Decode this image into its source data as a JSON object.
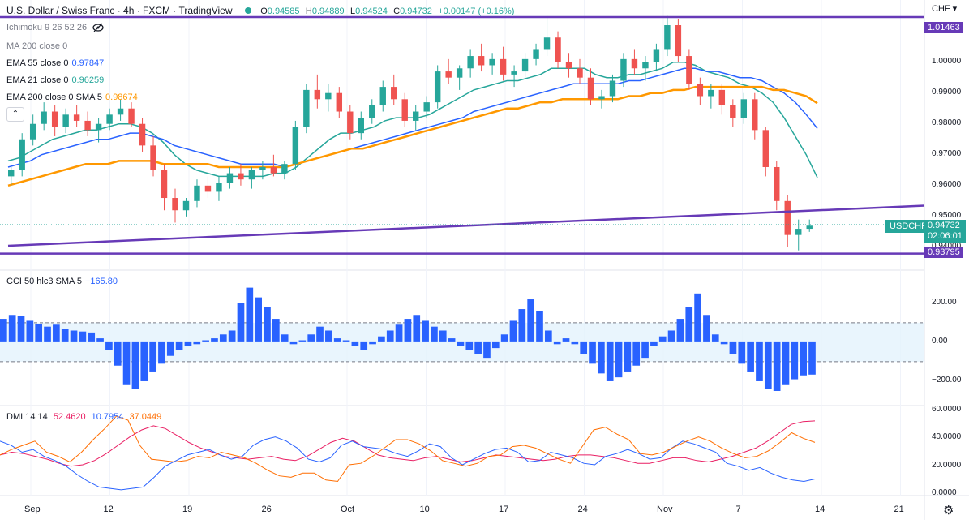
{
  "header": {
    "title": "U.S. Dollar / Swiss Franc · 4h · FXCM · TradingView",
    "open_label": "O",
    "open": "0.94585",
    "high_label": "H",
    "high": "0.94889",
    "low_label": "L",
    "low": "0.94524",
    "close_label": "C",
    "close": "0.94732",
    "change": "+0.00147 (+0.16%)"
  },
  "legend": {
    "ichimoku": "Ichimoku 9 26 52 26",
    "ma200": "MA 200 close 0",
    "ema55": "EMA 55 close 0",
    "ema55_value": "0.97847",
    "ema21": "EMA 21 close 0",
    "ema21_value": "0.96259",
    "ema200": "EMA 200 close 0 SMA 5",
    "ema200_value": "0.98674",
    "collapse_icon": "chevron-up-icon",
    "eye_icon": "eye-off-icon"
  },
  "price_scale": {
    "currency_label": "CHF",
    "ticks": [
      "1.01000",
      "1.00000",
      "0.99000",
      "0.98000",
      "0.97000",
      "0.96000",
      "0.95000",
      "0.94000"
    ],
    "tick_values": [
      1.01,
      1.0,
      0.99,
      0.98,
      0.97,
      0.96,
      0.95,
      0.94
    ],
    "top_line_label": "1.01463",
    "bottom_line_label": "0.93795",
    "symbol_tag": "USDCHF",
    "last_price": "0.94732",
    "countdown": "02:06:01"
  },
  "cci_panel": {
    "label": "CCI 50 hlc3 SMA 5",
    "value": "−165.80",
    "ticks": [
      "200.00",
      "0.00",
      "−200.00"
    ],
    "tick_values": [
      200,
      0,
      -200
    ]
  },
  "dmi_panel": {
    "label": "DMI 14 14",
    "adx_value": "52.4620",
    "di_minus_value": "10.7954",
    "di_plus_value": "37.0449",
    "ticks": [
      "60.0000",
      "40.0000",
      "20.0000",
      "0.0000"
    ],
    "tick_values": [
      60,
      40,
      20,
      0
    ]
  },
  "time_axis": {
    "labels": [
      "Sep",
      "12",
      "19",
      "26",
      "Oct",
      "10",
      "17",
      "24",
      "Nov",
      "7",
      "14",
      "21"
    ]
  },
  "colors": {
    "up": "#26a69a",
    "down": "#ef5350",
    "ema21": "#26a69a",
    "ema55": "#2962ff",
    "ema200": "#ff9800",
    "levels": "#673ab7",
    "cci": "#2962ff",
    "dmi_adx": "#e91e63",
    "dmi_minus": "#2962ff",
    "dmi_plus": "#ff6d00"
  },
  "settings_icon": "gear-icon",
  "chart_data": [
    {
      "type": "candlestick",
      "title": "U.S. Dollar / Swiss Franc · 4h · FXCM",
      "x_labels": [
        "Sep",
        "12",
        "19",
        "26",
        "Oct",
        "10",
        "17",
        "24",
        "Nov",
        "7",
        "14",
        "21"
      ],
      "ylim": [
        0.9355,
        1.017
      ],
      "ohlc": [
        [
          0.963,
          0.966,
          0.96,
          0.965
        ],
        [
          0.965,
          0.977,
          0.963,
          0.975
        ],
        [
          0.975,
          0.983,
          0.973,
          0.98
        ],
        [
          0.98,
          0.987,
          0.978,
          0.984
        ],
        [
          0.984,
          0.986,
          0.976,
          0.979
        ],
        [
          0.979,
          0.985,
          0.977,
          0.983
        ],
        [
          0.983,
          0.986,
          0.979,
          0.981
        ],
        [
          0.981,
          0.984,
          0.976,
          0.978
        ],
        [
          0.978,
          0.982,
          0.974,
          0.98
        ],
        [
          0.98,
          0.985,
          0.978,
          0.983
        ],
        [
          0.983,
          0.988,
          0.981,
          0.985
        ],
        [
          0.985,
          0.987,
          0.979,
          0.98
        ],
        [
          0.98,
          0.982,
          0.971,
          0.973
        ],
        [
          0.973,
          0.976,
          0.963,
          0.965
        ],
        [
          0.965,
          0.967,
          0.952,
          0.956
        ],
        [
          0.956,
          0.959,
          0.948,
          0.952
        ],
        [
          0.952,
          0.956,
          0.95,
          0.955
        ],
        [
          0.955,
          0.962,
          0.953,
          0.96
        ],
        [
          0.96,
          0.963,
          0.956,
          0.958
        ],
        [
          0.958,
          0.963,
          0.955,
          0.961
        ],
        [
          0.961,
          0.966,
          0.959,
          0.964
        ],
        [
          0.964,
          0.967,
          0.96,
          0.962
        ],
        [
          0.962,
          0.966,
          0.959,
          0.965
        ],
        [
          0.965,
          0.968,
          0.962,
          0.966
        ],
        [
          0.966,
          0.97,
          0.963,
          0.964
        ],
        [
          0.964,
          0.968,
          0.962,
          0.967
        ],
        [
          0.967,
          0.981,
          0.965,
          0.979
        ],
        [
          0.979,
          0.993,
          0.977,
          0.991
        ],
        [
          0.991,
          0.996,
          0.985,
          0.988
        ],
        [
          0.988,
          0.993,
          0.984,
          0.99
        ],
        [
          0.99,
          0.992,
          0.982,
          0.984
        ],
        [
          0.984,
          0.986,
          0.975,
          0.977
        ],
        [
          0.977,
          0.984,
          0.975,
          0.982
        ],
        [
          0.982,
          0.988,
          0.98,
          0.986
        ],
        [
          0.986,
          0.994,
          0.984,
          0.992
        ],
        [
          0.992,
          0.996,
          0.986,
          0.988
        ],
        [
          0.988,
          0.99,
          0.979,
          0.981
        ],
        [
          0.981,
          0.986,
          0.978,
          0.984
        ],
        [
          0.984,
          0.989,
          0.982,
          0.987
        ],
        [
          0.987,
          0.999,
          0.985,
          0.997
        ],
        [
          0.997,
          1.001,
          0.993,
          0.995
        ],
        [
          0.995,
          0.999,
          0.991,
          0.998
        ],
        [
          0.998,
          1.004,
          0.995,
          1.002
        ],
        [
          1.002,
          1.006,
          0.997,
          0.999
        ],
        [
          0.999,
          1.003,
          0.996,
          1.001
        ],
        [
          1.001,
          1.005,
          0.994,
          0.996
        ],
        [
          0.996,
          0.999,
          0.992,
          0.997
        ],
        [
          0.997,
          1.003,
          0.995,
          1.001
        ],
        [
          1.001,
          1.006,
          0.999,
          1.004
        ],
        [
          1.004,
          1.015,
          1.002,
          1.008
        ],
        [
          1.008,
          1.01,
          0.998,
          1.0
        ],
        [
          1.0,
          1.003,
          0.995,
          0.998
        ],
        [
          0.998,
          1.001,
          0.993,
          0.995
        ],
        [
          0.995,
          0.998,
          0.986,
          0.988
        ],
        [
          0.988,
          0.991,
          0.985,
          0.989
        ],
        [
          0.989,
          0.996,
          0.987,
          0.994
        ],
        [
          0.994,
          1.003,
          0.992,
          1.001
        ],
        [
          1.001,
          1.004,
          0.996,
          0.998
        ],
        [
          0.998,
          1.002,
          0.994,
          1.0
        ],
        [
          1.0,
          1.006,
          0.997,
          1.004
        ],
        [
          1.004,
          1.015,
          1.002,
          1.012
        ],
        [
          1.012,
          1.014,
          1.0,
          1.002
        ],
        [
          1.002,
          1.004,
          0.991,
          0.993
        ],
        [
          0.993,
          0.995,
          0.986,
          0.989
        ],
        [
          0.989,
          0.993,
          0.985,
          0.991
        ],
        [
          0.991,
          0.993,
          0.983,
          0.986
        ],
        [
          0.986,
          0.988,
          0.979,
          0.982
        ],
        [
          0.982,
          0.99,
          0.98,
          0.988
        ],
        [
          0.988,
          0.99,
          0.975,
          0.978
        ],
        [
          0.978,
          0.979,
          0.963,
          0.966
        ],
        [
          0.966,
          0.968,
          0.952,
          0.955
        ],
        [
          0.955,
          0.957,
          0.94,
          0.944
        ],
        [
          0.944,
          0.949,
          0.939,
          0.946
        ],
        [
          0.946,
          0.949,
          0.945,
          0.947
        ]
      ],
      "series": [
        {
          "name": "EMA 21 close 0",
          "last": 0.96259,
          "values": [
            0.968,
            0.969,
            0.971,
            0.973,
            0.975,
            0.976,
            0.977,
            0.978,
            0.978,
            0.979,
            0.98,
            0.98,
            0.979,
            0.977,
            0.974,
            0.97,
            0.967,
            0.965,
            0.964,
            0.963,
            0.963,
            0.963,
            0.963,
            0.963,
            0.964,
            0.964,
            0.966,
            0.969,
            0.972,
            0.975,
            0.977,
            0.977,
            0.978,
            0.979,
            0.981,
            0.982,
            0.982,
            0.982,
            0.983,
            0.985,
            0.987,
            0.989,
            0.991,
            0.992,
            0.993,
            0.994,
            0.994,
            0.995,
            0.996,
            0.998,
            0.998,
            0.998,
            0.998,
            0.996,
            0.995,
            0.995,
            0.996,
            0.996,
            0.997,
            0.998,
            1.0,
            1.0,
            0.999,
            0.997,
            0.996,
            0.995,
            0.993,
            0.992,
            0.99,
            0.987,
            0.982,
            0.976,
            0.97,
            0.9626
          ]
        },
        {
          "name": "EMA 55 close 0",
          "last": 0.97847,
          "values": [
            0.966,
            0.967,
            0.968,
            0.97,
            0.971,
            0.972,
            0.973,
            0.974,
            0.975,
            0.975,
            0.976,
            0.977,
            0.977,
            0.976,
            0.975,
            0.973,
            0.972,
            0.971,
            0.97,
            0.969,
            0.968,
            0.967,
            0.967,
            0.967,
            0.967,
            0.966,
            0.967,
            0.968,
            0.969,
            0.97,
            0.971,
            0.972,
            0.973,
            0.974,
            0.975,
            0.976,
            0.977,
            0.978,
            0.979,
            0.98,
            0.981,
            0.982,
            0.984,
            0.985,
            0.986,
            0.987,
            0.988,
            0.989,
            0.99,
            0.991,
            0.992,
            0.993,
            0.993,
            0.993,
            0.993,
            0.993,
            0.994,
            0.994,
            0.995,
            0.996,
            0.997,
            0.998,
            0.998,
            0.997,
            0.997,
            0.996,
            0.995,
            0.995,
            0.994,
            0.992,
            0.99,
            0.987,
            0.983,
            0.9785
          ]
        },
        {
          "name": "EMA 200 close 0 SMA 5",
          "last": 0.98674,
          "values": [
            0.96,
            0.961,
            0.962,
            0.963,
            0.964,
            0.965,
            0.966,
            0.967,
            0.967,
            0.967,
            0.968,
            0.968,
            0.968,
            0.968,
            0.967,
            0.967,
            0.967,
            0.967,
            0.967,
            0.966,
            0.966,
            0.966,
            0.966,
            0.966,
            0.966,
            0.966,
            0.967,
            0.968,
            0.969,
            0.97,
            0.971,
            0.972,
            0.972,
            0.973,
            0.974,
            0.975,
            0.976,
            0.977,
            0.978,
            0.979,
            0.98,
            0.981,
            0.982,
            0.983,
            0.984,
            0.985,
            0.985,
            0.986,
            0.987,
            0.987,
            0.988,
            0.988,
            0.988,
            0.988,
            0.988,
            0.988,
            0.989,
            0.989,
            0.99,
            0.99,
            0.991,
            0.991,
            0.992,
            0.992,
            0.992,
            0.992,
            0.992,
            0.992,
            0.992,
            0.991,
            0.991,
            0.99,
            0.989,
            0.9867
          ]
        }
      ],
      "levels": [
        {
          "name": "resistance",
          "value": 1.01463
        },
        {
          "name": "support",
          "value": 0.93795
        }
      ],
      "trendline": [
        [
          0,
          0.9405
        ],
        [
          78,
          0.9535
        ]
      ]
    },
    {
      "type": "bar",
      "title": "CCI 50 hlc3 SMA 5",
      "ylim": [
        -300,
        320
      ],
      "bands": [
        100,
        -100
      ],
      "values": [
        120,
        140,
        135,
        110,
        95,
        80,
        90,
        70,
        60,
        55,
        50,
        20,
        -40,
        -120,
        -220,
        -240,
        -200,
        -150,
        -110,
        -70,
        -40,
        -20,
        -10,
        10,
        20,
        40,
        60,
        200,
        280,
        230,
        180,
        120,
        40,
        -10,
        10,
        40,
        80,
        60,
        20,
        10,
        -20,
        -40,
        -10,
        30,
        60,
        90,
        120,
        140,
        110,
        80,
        60,
        20,
        -20,
        -40,
        -60,
        -80,
        -30,
        40,
        110,
        170,
        220,
        160,
        60,
        -10,
        20,
        -10,
        -60,
        -110,
        -160,
        -200,
        -180,
        -150,
        -120,
        -80,
        -20,
        30,
        60,
        120,
        180,
        250,
        140,
        40,
        -10,
        -60,
        -110,
        -150,
        -200,
        -240,
        -250,
        -220,
        -190,
        -170,
        -166
      ]
    },
    {
      "type": "line",
      "title": "DMI 14 14",
      "ylim": [
        0,
        60
      ],
      "series": [
        {
          "name": "DMI 14 14",
          "last": 52.462,
          "values": [
            28,
            30,
            29,
            27,
            25,
            22,
            20,
            21,
            24,
            29,
            35,
            41,
            46,
            49,
            47,
            42,
            37,
            33,
            30,
            27,
            26,
            25,
            26,
            27,
            25,
            24,
            27,
            32,
            37,
            40,
            38,
            33,
            28,
            26,
            25,
            24,
            26,
            27,
            25,
            23,
            24,
            26,
            28,
            27,
            26,
            25,
            24,
            25,
            27,
            28,
            28,
            27,
            26,
            24,
            22,
            22,
            24,
            26,
            26,
            24,
            23,
            25,
            27,
            30,
            33,
            38,
            44,
            50,
            52,
            52.46
          ]
        },
        {
          "name": "DMI 14 14",
          "last": 10.7954,
          "values": [
            38,
            35,
            30,
            32,
            27,
            24,
            20,
            14,
            9,
            5,
            4,
            3,
            4,
            5,
            12,
            20,
            24,
            28,
            30,
            32,
            28,
            25,
            27,
            35,
            39,
            41,
            38,
            33,
            25,
            23,
            26,
            35,
            38,
            34,
            33,
            32,
            29,
            27,
            31,
            36,
            34,
            26,
            21,
            25,
            29,
            32,
            33,
            30,
            23,
            24,
            30,
            28,
            26,
            22,
            21,
            27,
            29,
            32,
            29,
            25,
            26,
            33,
            38,
            36,
            33,
            30,
            22,
            20,
            17,
            19,
            15,
            12,
            10,
            9,
            10.79
          ]
        },
        {
          "name": "DMI 14 14",
          "last": 37.0449,
          "values": [
            28,
            32,
            35,
            38,
            30,
            27,
            23,
            30,
            39,
            47,
            56,
            53,
            35,
            25,
            24,
            23,
            24,
            27,
            26,
            30,
            28,
            26,
            22,
            17,
            13,
            12,
            15,
            15,
            10,
            9,
            21,
            22,
            27,
            33,
            39,
            39,
            36,
            31,
            24,
            22,
            20,
            22,
            27,
            28,
            34,
            35,
            33,
            29,
            25,
            22,
            34,
            46,
            48,
            43,
            39,
            29,
            28,
            30,
            34,
            38,
            41,
            38,
            33,
            29,
            26,
            27,
            31,
            37,
            44,
            40,
            37.04
          ]
        }
      ]
    }
  ]
}
